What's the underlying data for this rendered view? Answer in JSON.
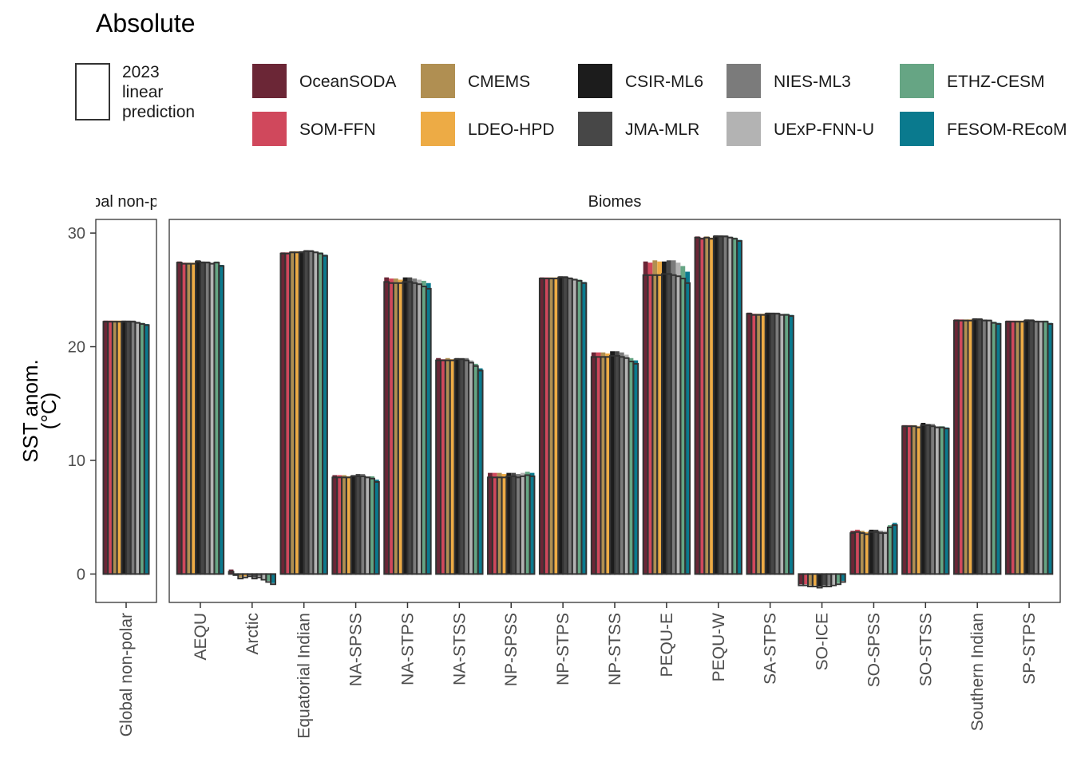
{
  "chart_data": {
    "type": "bar",
    "title": "Absolute",
    "ylabel_line1": "SST anom.",
    "ylabel_line2": "(°C)",
    "ylim": [
      -2.5,
      31.2
    ],
    "yticks": [
      0,
      10,
      20,
      30
    ],
    "grid": false,
    "legend_position": "top",
    "outline_legend": {
      "line1": "2023",
      "line2": "linear",
      "line3": "prediction"
    },
    "series": [
      {
        "name": "OceanSODA",
        "color": "#6b2636"
      },
      {
        "name": "SOM-FFN",
        "color": "#d0485c"
      },
      {
        "name": "CMEMS",
        "color": "#b08f52"
      },
      {
        "name": "LDEO-HPD",
        "color": "#edab45"
      },
      {
        "name": "CSIR-ML6",
        "color": "#1c1c1c"
      },
      {
        "name": "JMA-MLR",
        "color": "#474747"
      },
      {
        "name": "NIES-ML3",
        "color": "#7b7b7b"
      },
      {
        "name": "UExP-FNN-U",
        "color": "#b3b3b3"
      },
      {
        "name": "ETHZ-CESM",
        "color": "#66a584"
      },
      {
        "name": "FESOM-REcoM",
        "color": "#0a7a8e"
      }
    ],
    "panels": [
      {
        "strip": "Global non-polar",
        "categories": [
          {
            "label": "Global non-polar",
            "values": [
              22.3,
              22.3,
              22.3,
              22.3,
              22.3,
              22.3,
              22.3,
              22.2,
              22.1,
              22.0
            ],
            "predicted": [
              22.2,
              22.2,
              22.2,
              22.2,
              22.2,
              22.2,
              22.2,
              22.1,
              22.0,
              21.9
            ]
          }
        ]
      },
      {
        "strip": "Biomes",
        "categories": [
          {
            "label": "AEQU",
            "values": [
              27.5,
              27.4,
              27.4,
              27.4,
              27.6,
              27.5,
              27.5,
              27.4,
              27.5,
              27.2
            ],
            "predicted": [
              27.4,
              27.3,
              27.3,
              27.3,
              27.5,
              27.4,
              27.4,
              27.3,
              27.4,
              27.1
            ]
          },
          {
            "label": "Arctic",
            "values": [
              0.4,
              0.0,
              -0.3,
              -0.2,
              -0.1,
              -0.3,
              -0.2,
              -0.4,
              -0.6,
              -0.8
            ],
            "predicted": [
              0.2,
              -0.1,
              -0.4,
              -0.3,
              -0.2,
              -0.4,
              -0.3,
              -0.5,
              -0.7,
              -0.9
            ]
          },
          {
            "label": "Equatorial Indian",
            "values": [
              28.3,
              28.3,
              28.4,
              28.4,
              28.4,
              28.5,
              28.5,
              28.4,
              28.3,
              28.1
            ],
            "predicted": [
              28.2,
              28.2,
              28.3,
              28.3,
              28.3,
              28.4,
              28.4,
              28.3,
              28.2,
              28.0
            ]
          },
          {
            "label": "NA-SPSS",
            "values": [
              8.7,
              8.7,
              8.7,
              8.6,
              8.7,
              8.8,
              8.8,
              8.6,
              8.6,
              8.3
            ],
            "predicted": [
              8.5,
              8.5,
              8.5,
              8.5,
              8.6,
              8.6,
              8.6,
              8.5,
              8.4,
              8.1
            ]
          },
          {
            "label": "NA-STPS",
            "values": [
              26.1,
              26.0,
              26.0,
              25.9,
              26.1,
              26.1,
              26.0,
              25.9,
              25.8,
              25.6
            ],
            "predicted": [
              25.7,
              25.6,
              25.6,
              25.6,
              25.7,
              25.7,
              25.6,
              25.5,
              25.3,
              25.1
            ]
          },
          {
            "label": "NA-STSS",
            "values": [
              19.0,
              18.9,
              19.0,
              18.9,
              19.0,
              19.0,
              19.0,
              18.8,
              18.5,
              18.1
            ],
            "predicted": [
              18.8,
              18.8,
              18.8,
              18.8,
              18.9,
              18.9,
              18.8,
              18.6,
              18.3,
              17.9
            ]
          },
          {
            "label": "NP-SPSS",
            "values": [
              8.9,
              8.9,
              8.9,
              8.8,
              8.9,
              8.9,
              8.8,
              8.9,
              9.0,
              8.9
            ],
            "predicted": [
              8.5,
              8.5,
              8.5,
              8.5,
              8.6,
              8.6,
              8.5,
              8.6,
              8.7,
              8.6
            ]
          },
          {
            "label": "NP-STPS",
            "values": [
              26.1,
              26.1,
              26.1,
              26.1,
              26.2,
              26.2,
              26.1,
              26.0,
              25.9,
              25.7
            ],
            "predicted": [
              26.0,
              26.0,
              26.0,
              26.0,
              26.1,
              26.1,
              26.0,
              25.9,
              25.8,
              25.6
            ]
          },
          {
            "label": "NP-STSS",
            "values": [
              19.5,
              19.5,
              19.5,
              19.4,
              19.6,
              19.6,
              19.5,
              19.3,
              19.0,
              18.8
            ],
            "predicted": [
              19.1,
              19.1,
              19.1,
              19.1,
              19.2,
              19.2,
              19.1,
              19.0,
              18.7,
              18.5
            ]
          },
          {
            "label": "PEQU-E",
            "values": [
              27.5,
              27.4,
              27.6,
              27.5,
              27.5,
              27.6,
              27.6,
              27.4,
              27.1,
              26.6
            ],
            "predicted": [
              26.3,
              26.3,
              26.3,
              26.3,
              26.4,
              26.4,
              26.3,
              26.2,
              26.0,
              25.6
            ]
          },
          {
            "label": "PEQU-W",
            "values": [
              29.7,
              29.6,
              29.7,
              29.6,
              29.8,
              29.8,
              29.8,
              29.7,
              29.6,
              29.4
            ],
            "predicted": [
              29.6,
              29.5,
              29.6,
              29.5,
              29.7,
              29.7,
              29.7,
              29.6,
              29.5,
              29.3
            ]
          },
          {
            "label": "SA-STPS",
            "values": [
              23.0,
              22.9,
              22.9,
              22.9,
              23.0,
              23.0,
              23.0,
              22.9,
              22.9,
              22.8
            ],
            "predicted": [
              22.9,
              22.8,
              22.8,
              22.8,
              22.9,
              22.9,
              22.9,
              22.8,
              22.8,
              22.7
            ]
          },
          {
            "label": "SO-ICE",
            "values": [
              -0.9,
              -0.9,
              -1.0,
              -1.0,
              -1.1,
              -1.0,
              -1.0,
              -0.9,
              -0.8,
              -0.6
            ],
            "predicted": [
              -1.0,
              -1.0,
              -1.1,
              -1.1,
              -1.2,
              -1.1,
              -1.1,
              -1.0,
              -0.9,
              -0.7
            ]
          },
          {
            "label": "SO-SPSS",
            "values": [
              3.8,
              3.9,
              3.8,
              3.7,
              3.9,
              3.9,
              3.8,
              3.8,
              4.3,
              4.5
            ],
            "predicted": [
              3.6,
              3.7,
              3.6,
              3.5,
              3.7,
              3.7,
              3.6,
              3.6,
              4.1,
              4.3
            ]
          },
          {
            "label": "SO-STSS",
            "values": [
              13.1,
              13.1,
              13.1,
              13.0,
              13.3,
              13.2,
              13.2,
              13.0,
              13.0,
              12.9
            ],
            "predicted": [
              13.0,
              13.0,
              13.0,
              12.9,
              13.1,
              13.1,
              13.0,
              12.9,
              12.9,
              12.8
            ]
          },
          {
            "label": "Southern Indian",
            "values": [
              22.4,
              22.4,
              22.4,
              22.4,
              22.5,
              22.5,
              22.4,
              22.4,
              22.2,
              22.1
            ],
            "predicted": [
              22.3,
              22.3,
              22.3,
              22.3,
              22.4,
              22.4,
              22.3,
              22.3,
              22.1,
              22.0
            ]
          },
          {
            "label": "SP-STPS",
            "values": [
              22.3,
              22.3,
              22.3,
              22.3,
              22.4,
              22.4,
              22.3,
              22.3,
              22.3,
              22.1
            ],
            "predicted": [
              22.2,
              22.2,
              22.2,
              22.2,
              22.3,
              22.3,
              22.2,
              22.2,
              22.2,
              22.0
            ]
          }
        ]
      }
    ]
  }
}
